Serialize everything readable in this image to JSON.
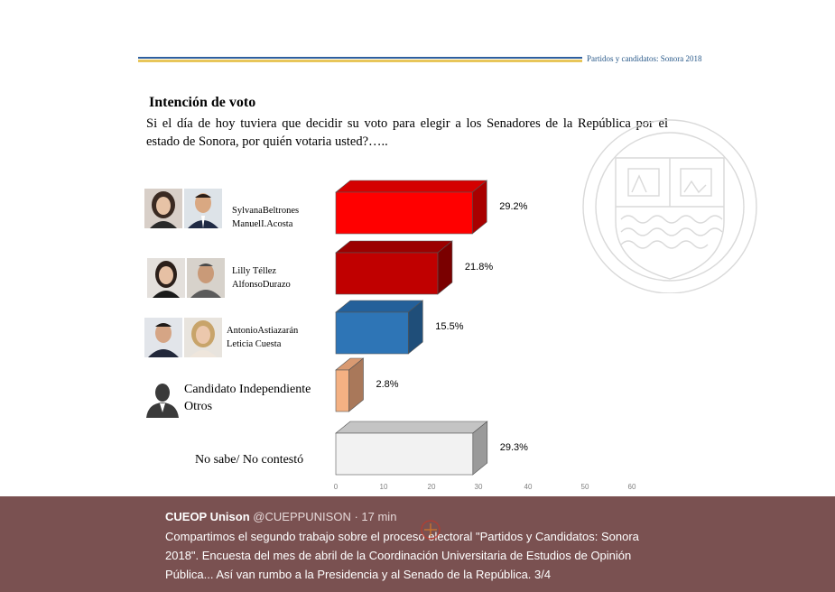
{
  "header": {
    "title": "Partidos y candidatos: Sonora 2018"
  },
  "page": {
    "heading": "Intención de voto",
    "question": "Si el día de hoy tuviera que decidir su voto para elegir a los Senadores de la República por el estado de Sonora, por quién votaria usted?….."
  },
  "candidates": [
    {
      "line1": "SylvanaBeltrones",
      "line2": "ManuelI.Acosta"
    },
    {
      "line1": "Lilly Téllez",
      "line2": "AlfonsoDurazo"
    },
    {
      "line1": "AntonioAstiazarán",
      "line2": "Leticia Cuesta"
    },
    {
      "line1": "Candidato Independiente",
      "line2": "Otros"
    },
    {
      "line1": "No sabe/ No contestó",
      "line2": ""
    }
  ],
  "chart_data": {
    "type": "bar",
    "orientation": "horizontal",
    "title": "Intención de voto",
    "categories": [
      "Sylvana Beltrones / Manuel I. Acosta",
      "Lilly Téllez / Alfonso Durazo",
      "Antonio Astiazarán / Leticia Cuesta",
      "Candidato Independiente / Otros",
      "No sabe/ No contestó"
    ],
    "values": [
      29.2,
      21.8,
      15.5,
      2.8,
      29.3
    ],
    "value_labels": [
      "29.2%",
      "21.8%",
      "15.5%",
      "2.8%",
      "29.3%"
    ],
    "colors": [
      "#ff0000",
      "#c00000",
      "#2e75b6",
      "#f4b183",
      "#f2f2f2"
    ],
    "side_colors": [
      "#a80000",
      "#7a0000",
      "#1f4e79",
      "#a9785a",
      "#9a9a9a"
    ],
    "top_colors": [
      "#d40000",
      "#9b0000",
      "#24609a",
      "#d99a72",
      "#c4c4c4"
    ],
    "x_ticks": [
      "0",
      "10",
      "20",
      "30",
      "40",
      "50",
      "60"
    ],
    "xlim": [
      0,
      60
    ],
    "grid": false,
    "legend": "none"
  },
  "tweet": {
    "author": "CUEOP Unison",
    "handle": "@CUEPPUNISON",
    "time": "· 17 min",
    "text": "Compartimos el segundo trabajo sobre el proceso electoral \"Partidos y Candidatos: Sonora 2018\". Encuesta del mes de abril de la Coordinación Universitaria de Estudios de Opinión Pública... Así van rumbo a la Presidencia y al Senado de la República. 3/4"
  }
}
